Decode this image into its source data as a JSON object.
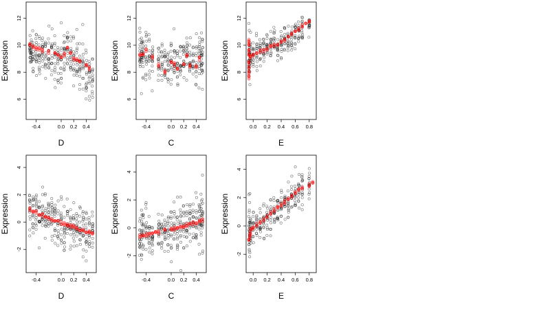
{
  "chart_data": [
    {
      "type": "scatter",
      "xlabel": "D",
      "ylabel": "Expression",
      "xlim": [
        -0.56,
        0.56
      ],
      "ylim": [
        4.5,
        13.2
      ],
      "xticks": [
        -0.4,
        0.0,
        0.2,
        0.4
      ],
      "xtick_labels": [
        "-0.4",
        "0.0",
        "0.2",
        "0.4"
      ],
      "yticks": [
        6,
        8,
        10,
        12
      ],
      "ytick_labels": [
        "6",
        "8",
        "10",
        "12"
      ],
      "observed_color": "#000000",
      "fitted_color": "#ff0000",
      "fitted": {
        "x": [
          -0.5,
          -0.45,
          -0.4,
          -0.35,
          -0.3,
          -0.2,
          -0.1,
          -0.05,
          0.0,
          0.05,
          0.1,
          0.15,
          0.2,
          0.25,
          0.3,
          0.4,
          0.45
        ],
        "y": [
          10.0,
          9.9,
          9.8,
          9.7,
          9.6,
          9.5,
          9.4,
          9.3,
          9.2,
          9.3,
          9.8,
          9.4,
          9.0,
          8.9,
          8.8,
          8.6,
          8.3
        ]
      },
      "observed": {
        "x": [
          -0.5,
          -0.48,
          -0.45,
          -0.4,
          -0.35,
          -0.3,
          -0.25,
          -0.2,
          -0.15,
          -0.1,
          -0.05,
          0.0,
          0.05,
          0.1,
          0.15,
          0.2,
          0.25,
          0.3,
          0.35,
          0.4,
          0.45,
          0.5
        ],
        "center": [
          9.8,
          9.6,
          9.4,
          9.5,
          9.4,
          9.3,
          9.2,
          9.1,
          9.0,
          9.0,
          8.9,
          9.0,
          9.3,
          9.6,
          9.2,
          8.9,
          8.7,
          8.6,
          8.4,
          8.3,
          8.0,
          7.6
        ],
        "spread": [
          1.2,
          1.3,
          1.5,
          1.6,
          1.6,
          1.5,
          1.7,
          1.6,
          1.7,
          1.6,
          1.8,
          1.9,
          1.7,
          1.6,
          1.7,
          1.6,
          1.5,
          1.6,
          1.5,
          1.7,
          1.6,
          1.5
        ]
      }
    },
    {
      "type": "scatter",
      "xlabel": "C",
      "ylabel": "Expression",
      "xlim": [
        -0.56,
        0.56
      ],
      "ylim": [
        4.5,
        13.2
      ],
      "xticks": [
        -0.4,
        0.0,
        0.2,
        0.4
      ],
      "xtick_labels": [
        "-0.4",
        "0.0",
        "0.2",
        "0.4"
      ],
      "yticks": [
        6,
        8,
        10,
        12
      ],
      "ytick_labels": [
        "6",
        "8",
        "10",
        "12"
      ],
      "observed_color": "#000000",
      "fitted_color": "#ff0000",
      "fitted": {
        "x": [
          -0.5,
          -0.45,
          -0.4,
          -0.3,
          -0.2,
          -0.1,
          0.0,
          0.05,
          0.1,
          0.2,
          0.25,
          0.3,
          0.4,
          0.45
        ],
        "y": [
          9.3,
          9.4,
          9.6,
          9.1,
          8.5,
          8.0,
          8.8,
          8.6,
          8.2,
          8.7,
          9.2,
          8.5,
          8.4,
          9.0
        ]
      },
      "observed": {
        "x": [
          -0.5,
          -0.47,
          -0.45,
          -0.4,
          -0.35,
          -0.3,
          -0.2,
          -0.15,
          -0.1,
          -0.05,
          0.0,
          0.05,
          0.1,
          0.15,
          0.2,
          0.25,
          0.3,
          0.35,
          0.4,
          0.45,
          0.48,
          0.5
        ],
        "center": [
          9.6,
          9.4,
          9.5,
          9.5,
          9.2,
          9.0,
          8.6,
          8.7,
          8.4,
          8.5,
          8.8,
          8.7,
          8.5,
          8.6,
          8.9,
          9.1,
          8.8,
          8.6,
          8.7,
          9.2,
          9.1,
          9.4
        ],
        "spread": [
          1.5,
          1.6,
          1.8,
          1.7,
          1.4,
          1.3,
          1.2,
          1.3,
          1.3,
          1.4,
          1.5,
          1.4,
          1.6,
          1.5,
          1.6,
          1.6,
          1.5,
          1.5,
          1.6,
          1.9,
          1.8,
          1.7
        ]
      }
    },
    {
      "type": "scatter",
      "xlabel": "E",
      "ylabel": "Expression",
      "xlim": [
        -0.1,
        0.9
      ],
      "ylim": [
        4.5,
        13.2
      ],
      "xticks": [
        0.0,
        0.2,
        0.4,
        0.6,
        0.8
      ],
      "xtick_labels": [
        "0.0",
        "0.2",
        "0.4",
        "0.6",
        "0.8"
      ],
      "yticks": [
        6,
        8,
        10,
        12
      ],
      "ytick_labels": [
        "6",
        "8",
        "10",
        "12"
      ],
      "observed_color": "#000000",
      "fitted_color": "#ff0000",
      "fitted": {
        "x": [
          -0.06,
          -0.06,
          -0.06,
          -0.06,
          -0.06,
          -0.06,
          -0.06,
          -0.06,
          -0.04,
          0.0,
          0.05,
          0.1,
          0.15,
          0.2,
          0.25,
          0.3,
          0.35,
          0.4,
          0.45,
          0.5,
          0.55,
          0.6,
          0.65,
          0.7,
          0.75,
          0.8
        ],
        "y": [
          7.6,
          8.0,
          8.4,
          8.8,
          9.2,
          9.6,
          10.0,
          10.3,
          9.1,
          9.3,
          9.4,
          9.5,
          9.6,
          9.7,
          9.9,
          10.0,
          10.1,
          10.2,
          10.4,
          10.6,
          10.8,
          11.0,
          11.2,
          11.4,
          11.6,
          11.8
        ]
      },
      "observed": {
        "x": [
          -0.06,
          -0.05,
          -0.04,
          0.0,
          0.05,
          0.1,
          0.15,
          0.2,
          0.25,
          0.3,
          0.35,
          0.4,
          0.45,
          0.5,
          0.55,
          0.6,
          0.65,
          0.7,
          0.8
        ],
        "center": [
          9.0,
          9.0,
          9.2,
          9.3,
          9.4,
          9.4,
          9.5,
          9.7,
          9.8,
          10.0,
          10.0,
          10.1,
          10.3,
          10.5,
          10.6,
          10.9,
          11.0,
          11.2,
          11.3
        ],
        "spread": [
          2.0,
          1.7,
          1.2,
          1.0,
          1.0,
          1.0,
          1.0,
          1.0,
          1.1,
          1.0,
          1.0,
          1.1,
          1.1,
          1.2,
          1.1,
          1.0,
          1.0,
          0.9,
          0.8
        ]
      }
    },
    {
      "type": "scatter",
      "xlabel": "D",
      "ylabel": "Expression",
      "xlim": [
        -0.56,
        0.56
      ],
      "ylim": [
        -3.7,
        4.9
      ],
      "xticks": [
        -0.4,
        0.0,
        0.2,
        0.4
      ],
      "xtick_labels": [
        "-0.4",
        "0.0",
        "0.2",
        "0.4"
      ],
      "yticks": [
        -2,
        0,
        2,
        4
      ],
      "ytick_labels": [
        "-2",
        "0",
        "2",
        "4"
      ],
      "observed_color": "#000000",
      "fitted_color": "#ff0000",
      "fitted": {
        "x": [
          -0.5,
          -0.45,
          -0.4,
          -0.35,
          -0.3,
          -0.25,
          -0.2,
          -0.15,
          -0.1,
          -0.05,
          0.0,
          0.05,
          0.1,
          0.15,
          0.2,
          0.25,
          0.3,
          0.35,
          0.4,
          0.45,
          0.5
        ],
        "y": [
          0.95,
          0.8,
          0.7,
          0.6,
          0.5,
          0.4,
          0.3,
          0.2,
          0.1,
          0.0,
          -0.05,
          -0.15,
          -0.2,
          -0.3,
          -0.35,
          -0.45,
          -0.5,
          -0.6,
          -0.7,
          -0.75,
          -0.85
        ]
      },
      "observed": {
        "x": [
          -0.5,
          -0.45,
          -0.4,
          -0.35,
          -0.3,
          -0.25,
          -0.2,
          -0.15,
          -0.1,
          -0.05,
          0.0,
          0.05,
          0.1,
          0.15,
          0.2,
          0.25,
          0.3,
          0.35,
          0.4,
          0.45,
          0.5
        ],
        "center": [
          0.9,
          0.8,
          0.7,
          0.6,
          0.5,
          0.4,
          0.3,
          0.2,
          0.1,
          0.0,
          -0.05,
          -0.1,
          -0.2,
          -0.3,
          -0.35,
          -0.45,
          -0.5,
          -0.6,
          -0.7,
          -0.75,
          -0.85
        ],
        "spread": [
          1.4,
          1.5,
          1.6,
          1.6,
          1.6,
          1.5,
          1.6,
          1.5,
          1.6,
          1.6,
          1.8,
          1.6,
          1.7,
          1.6,
          1.5,
          1.5,
          1.6,
          1.5,
          1.6,
          1.5,
          1.4
        ]
      }
    },
    {
      "type": "scatter",
      "xlabel": "C",
      "ylabel": "Expression",
      "xlim": [
        -0.56,
        0.56
      ],
      "ylim": [
        -3.2,
        5.2
      ],
      "xticks": [
        -0.4,
        0.0,
        0.2,
        0.4
      ],
      "xtick_labels": [
        "-0.4",
        "0.0",
        "0.2",
        "0.4"
      ],
      "yticks": [
        -2,
        0,
        2,
        4
      ],
      "ytick_labels": [
        "-2",
        "0",
        "2",
        "4"
      ],
      "observed_color": "#000000",
      "fitted_color": "#ff0000",
      "fitted": {
        "x": [
          -0.5,
          -0.45,
          -0.4,
          -0.35,
          -0.3,
          -0.25,
          -0.2,
          -0.1,
          0.0,
          0.05,
          0.1,
          0.15,
          0.2,
          0.25,
          0.3,
          0.35,
          0.4,
          0.45,
          0.5
        ],
        "y": [
          -0.6,
          -0.55,
          -0.5,
          -0.45,
          -0.4,
          -0.35,
          -0.3,
          -0.2,
          -0.1,
          -0.05,
          0.0,
          0.05,
          0.1,
          0.2,
          0.25,
          0.3,
          0.4,
          0.5,
          0.55
        ]
      },
      "observed": {
        "x": [
          -0.5,
          -0.47,
          -0.45,
          -0.4,
          -0.35,
          -0.3,
          -0.2,
          -0.15,
          -0.1,
          -0.05,
          0.0,
          0.05,
          0.1,
          0.15,
          0.2,
          0.25,
          0.3,
          0.35,
          0.4,
          0.45,
          0.48,
          0.5
        ],
        "center": [
          -0.6,
          -0.55,
          -0.55,
          -0.5,
          -0.45,
          -0.4,
          -0.3,
          -0.25,
          -0.2,
          -0.15,
          -0.1,
          -0.05,
          0.0,
          0.05,
          0.1,
          0.2,
          0.25,
          0.3,
          0.4,
          0.5,
          0.5,
          0.55
        ],
        "spread": [
          1.6,
          1.6,
          1.7,
          1.6,
          1.4,
          1.3,
          1.3,
          1.3,
          1.3,
          1.4,
          1.5,
          1.4,
          1.6,
          1.5,
          1.6,
          1.6,
          1.5,
          1.5,
          1.6,
          2.0,
          1.9,
          1.8
        ]
      }
    },
    {
      "type": "scatter",
      "xlabel": "E",
      "ylabel": "Expression",
      "xlim": [
        -0.1,
        0.9
      ],
      "ylim": [
        -3.3,
        5.0
      ],
      "xticks": [
        0.0,
        0.2,
        0.4,
        0.6,
        0.8
      ],
      "xtick_labels": [
        "0.0",
        "0.2",
        "0.4",
        "0.6",
        "0.8"
      ],
      "yticks": [
        -2,
        0,
        2,
        4
      ],
      "ytick_labels": [
        "-2",
        "0",
        "2",
        "4"
      ],
      "observed_color": "#000000",
      "fitted_color": "#ff0000",
      "fitted": {
        "x": [
          -0.06,
          -0.05,
          -0.04,
          -0.03,
          0.0,
          0.05,
          0.1,
          0.15,
          0.2,
          0.25,
          0.3,
          0.35,
          0.4,
          0.45,
          0.5,
          0.55,
          0.6,
          0.65,
          0.7,
          0.8,
          0.85
        ],
        "y": [
          -0.9,
          -0.7,
          -0.5,
          -0.3,
          -0.1,
          0.1,
          0.3,
          0.5,
          0.7,
          0.9,
          1.1,
          1.3,
          1.5,
          1.7,
          1.9,
          2.1,
          2.3,
          2.5,
          2.7,
          2.9,
          3.0
        ]
      },
      "observed": {
        "x": [
          -0.06,
          -0.05,
          -0.04,
          0.0,
          0.05,
          0.1,
          0.15,
          0.2,
          0.25,
          0.3,
          0.35,
          0.4,
          0.45,
          0.5,
          0.55,
          0.6,
          0.65,
          0.7,
          0.8
        ],
        "center": [
          -0.5,
          -0.4,
          -0.3,
          -0.1,
          0.1,
          0.3,
          0.5,
          0.7,
          0.9,
          1.1,
          1.3,
          1.5,
          1.7,
          1.9,
          2.1,
          2.3,
          2.5,
          2.7,
          2.9
        ],
        "spread": [
          2.2,
          1.8,
          1.3,
          1.1,
          1.0,
          1.0,
          1.0,
          1.0,
          1.1,
          1.0,
          1.0,
          1.1,
          1.0,
          1.1,
          1.0,
          1.0,
          1.0,
          0.9,
          0.8
        ]
      }
    }
  ]
}
